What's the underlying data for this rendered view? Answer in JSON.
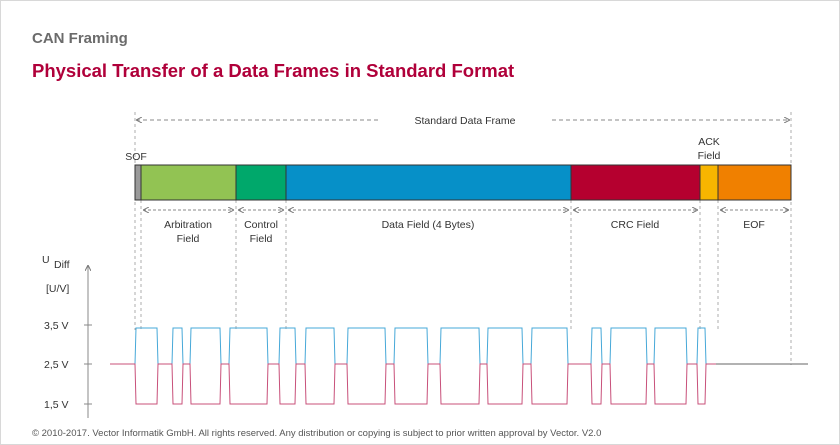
{
  "header": {
    "label": "CAN Framing",
    "title": "Physical Transfer of a Data Frames in Standard Format"
  },
  "frame": {
    "span_label": "Standard Data Frame",
    "fields": [
      {
        "id": "sof",
        "label_lines": [
          "SOF"
        ],
        "color": "#9a9a9a"
      },
      {
        "id": "arbitration",
        "label_lines": [
          "Arbitration",
          "Field"
        ],
        "color": "#92c353"
      },
      {
        "id": "control",
        "label_lines": [
          "Control",
          "Field"
        ],
        "color": "#00a86b"
      },
      {
        "id": "data",
        "label_lines": [
          "Data Field (4 Bytes)"
        ],
        "color": "#0690c8"
      },
      {
        "id": "crc",
        "label_lines": [
          "CRC Field"
        ],
        "color": "#b5002f"
      },
      {
        "id": "ack",
        "label_lines": [
          "ACK",
          "Field"
        ],
        "color": "#f7b500"
      },
      {
        "id": "eof",
        "label_lines": [
          "EOF"
        ],
        "color": "#f08000"
      }
    ]
  },
  "axis": {
    "label_main": "U",
    "label_sub": "Diff",
    "unit": "[U/V]",
    "ticks": [
      "3,5 V",
      "2,5 V",
      "1,5 V"
    ]
  },
  "colors": {
    "can_high": "#46a8d8",
    "can_low": "#c8507a",
    "recessive": "#666666"
  },
  "footer": {
    "copyright": "© 2010-2017. Vector Informatik GmbH. All rights reserved. Any distribution or copying is subject to prior written approval by Vector. V2.0"
  }
}
